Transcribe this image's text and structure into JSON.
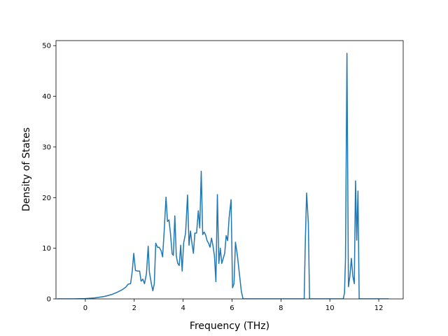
{
  "chart_data": {
    "type": "line",
    "title": "",
    "xlabel": "Frequency (THz)",
    "ylabel": "Density of States",
    "xlim": [
      -1.2,
      13.0
    ],
    "ylim": [
      0,
      51
    ],
    "x_ticks": [
      0,
      2,
      4,
      6,
      8,
      10,
      12
    ],
    "y_ticks": [
      0,
      10,
      20,
      30,
      40,
      50
    ],
    "grid": false,
    "legend": "none",
    "series": [
      {
        "color": "#1f77b4",
        "points": [
          [
            -1.15,
            0
          ],
          [
            -0.5,
            0
          ],
          [
            0,
            0.05
          ],
          [
            0.4,
            0.2
          ],
          [
            0.8,
            0.5
          ],
          [
            1.1,
            0.9
          ],
          [
            1.3,
            1.3
          ],
          [
            1.5,
            1.8
          ],
          [
            1.65,
            2.3
          ],
          [
            1.75,
            2.9
          ],
          [
            1.85,
            3.0
          ],
          [
            1.92,
            5.5
          ],
          [
            1.98,
            9.0
          ],
          [
            2.05,
            5.6
          ],
          [
            2.15,
            5.5
          ],
          [
            2.22,
            5.5
          ],
          [
            2.28,
            3.5
          ],
          [
            2.35,
            3.9
          ],
          [
            2.42,
            3.0
          ],
          [
            2.5,
            5.0
          ],
          [
            2.57,
            10.4
          ],
          [
            2.62,
            5.3
          ],
          [
            2.7,
            3.0
          ],
          [
            2.76,
            1.6
          ],
          [
            2.82,
            3.0
          ],
          [
            2.88,
            11.0
          ],
          [
            2.95,
            10.2
          ],
          [
            3.02,
            10.2
          ],
          [
            3.1,
            9.5
          ],
          [
            3.16,
            8.3
          ],
          [
            3.22,
            13.0
          ],
          [
            3.3,
            20.1
          ],
          [
            3.36,
            15.3
          ],
          [
            3.42,
            15.6
          ],
          [
            3.48,
            13.0
          ],
          [
            3.55,
            8.9
          ],
          [
            3.6,
            8.6
          ],
          [
            3.66,
            16.4
          ],
          [
            3.72,
            8.5
          ],
          [
            3.78,
            7.0
          ],
          [
            3.84,
            6.6
          ],
          [
            3.9,
            10.6
          ],
          [
            3.96,
            5.5
          ],
          [
            4.02,
            11.0
          ],
          [
            4.1,
            13.0
          ],
          [
            4.18,
            20.5
          ],
          [
            4.24,
            10.6
          ],
          [
            4.3,
            13.4
          ],
          [
            4.36,
            11.0
          ],
          [
            4.42,
            9.0
          ],
          [
            4.48,
            13.0
          ],
          [
            4.55,
            13.0
          ],
          [
            4.62,
            17.4
          ],
          [
            4.68,
            14.0
          ],
          [
            4.74,
            25.2
          ],
          [
            4.8,
            12.7
          ],
          [
            4.86,
            13.2
          ],
          [
            4.92,
            12.6
          ],
          [
            4.98,
            11.5
          ],
          [
            5.04,
            11.0
          ],
          [
            5.1,
            10.2
          ],
          [
            5.16,
            12.0
          ],
          [
            5.22,
            10.5
          ],
          [
            5.28,
            8.5
          ],
          [
            5.34,
            3.4
          ],
          [
            5.4,
            20.6
          ],
          [
            5.46,
            7.0
          ],
          [
            5.52,
            10.0
          ],
          [
            5.58,
            7.0
          ],
          [
            5.64,
            8.0
          ],
          [
            5.7,
            9.0
          ],
          [
            5.76,
            12.5
          ],
          [
            5.82,
            11.5
          ],
          [
            5.88,
            16.0
          ],
          [
            5.96,
            19.6
          ],
          [
            6.02,
            2.2
          ],
          [
            6.08,
            3.0
          ],
          [
            6.14,
            11.2
          ],
          [
            6.22,
            8.5
          ],
          [
            6.3,
            5.0
          ],
          [
            6.38,
            1.5
          ],
          [
            6.45,
            0
          ],
          [
            8.95,
            0
          ],
          [
            9.0,
            12.0
          ],
          [
            9.05,
            20.9
          ],
          [
            9.12,
            15.0
          ],
          [
            9.17,
            0
          ],
          [
            10.55,
            0
          ],
          [
            10.6,
            1.2
          ],
          [
            10.64,
            8.0
          ],
          [
            10.7,
            48.5
          ],
          [
            10.76,
            2.4
          ],
          [
            10.82,
            4.5
          ],
          [
            10.88,
            8.0
          ],
          [
            10.94,
            4.5
          ],
          [
            11.0,
            3.0
          ],
          [
            11.05,
            23.3
          ],
          [
            11.1,
            11.6
          ],
          [
            11.15,
            21.3
          ],
          [
            11.2,
            0
          ],
          [
            12.4,
            0
          ]
        ]
      }
    ]
  }
}
